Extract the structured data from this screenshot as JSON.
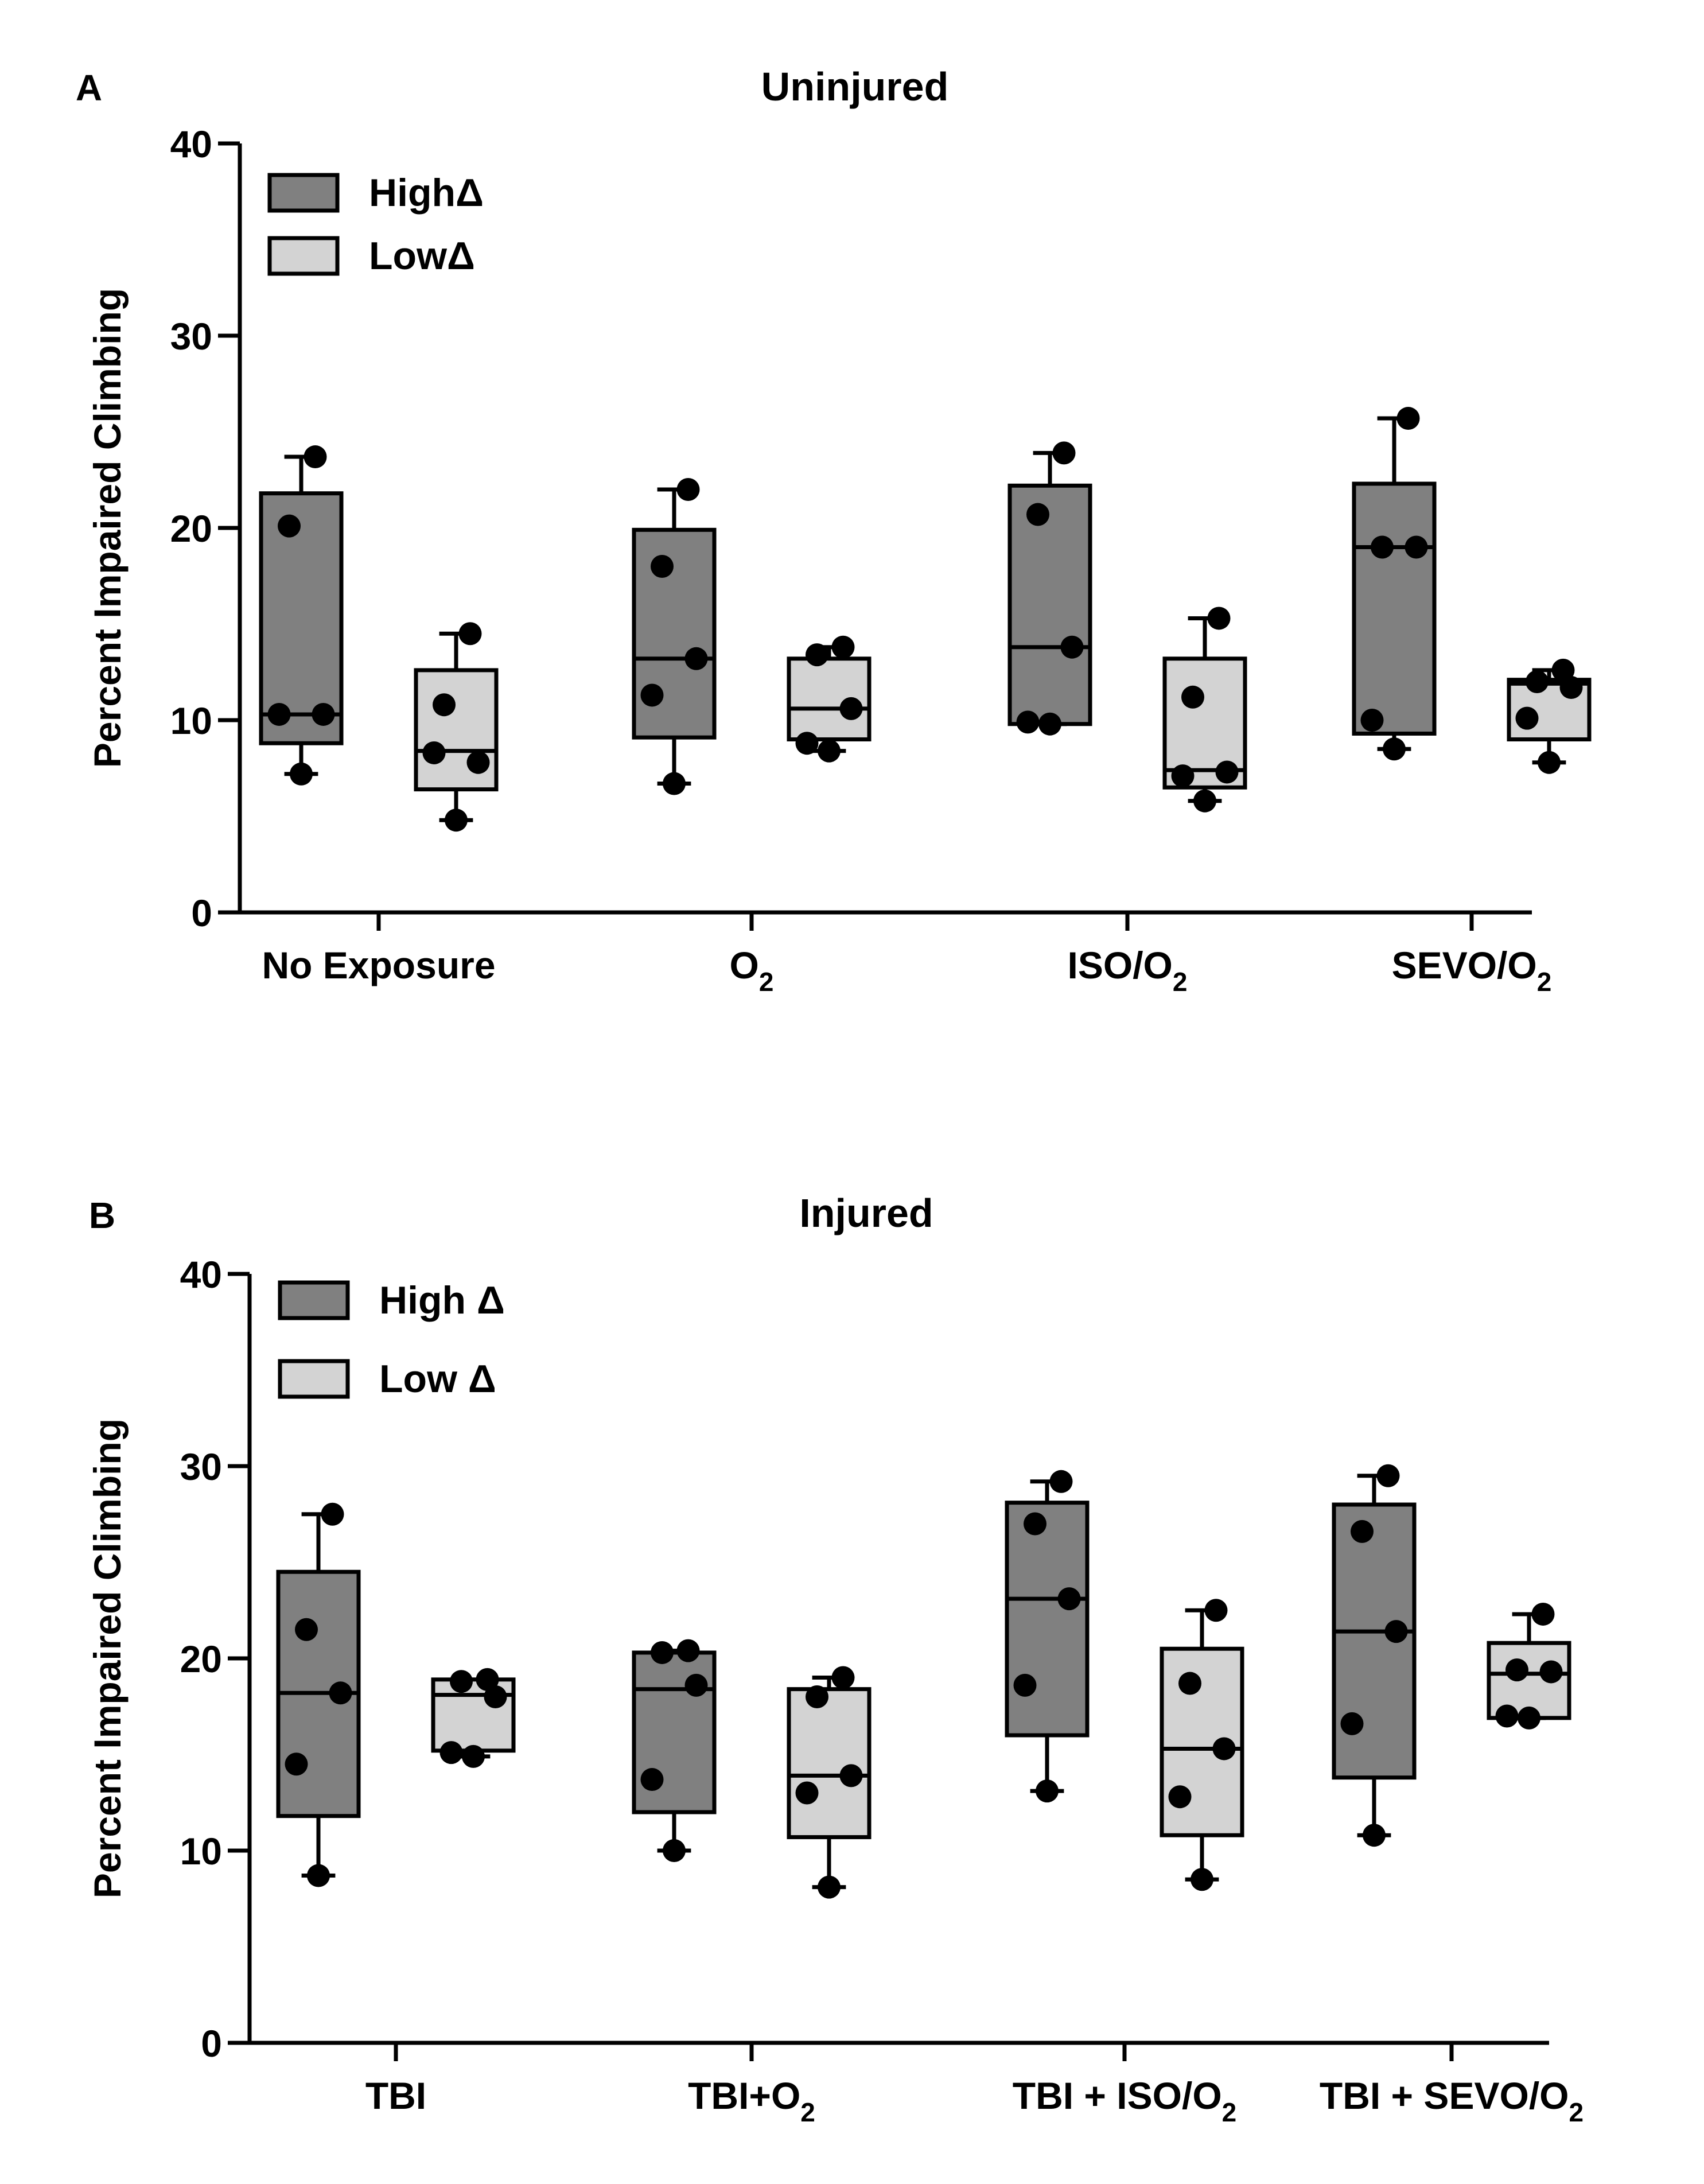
{
  "chart_data": [
    {
      "type": "box",
      "panel_label": "A",
      "title": "Uninjured",
      "ylabel": "Percent Impaired Climbing",
      "xlabel": "",
      "ylim": [
        0,
        40
      ],
      "yticks": [
        "0",
        "10",
        "20",
        "30",
        "40"
      ],
      "legend_position": "top-left",
      "series": [
        {
          "name": "HighΔ",
          "color": "#808080"
        },
        {
          "name": "LowΔ",
          "color": "#d3d3d3"
        }
      ],
      "categories": [
        {
          "label": "No Exposure",
          "sub": ""
        },
        {
          "label": "O",
          "sub": "2"
        },
        {
          "label": "ISO/O",
          "sub": "2"
        },
        {
          "label": "SEVO/O",
          "sub": "2"
        }
      ],
      "boxes": [
        [
          {
            "min": 7.2,
            "q1": 8.8,
            "median": 10.3,
            "q3": 21.8,
            "max": 23.7,
            "points": [
              7.2,
              10.3,
              10.3,
              20.1,
              23.7
            ]
          },
          {
            "min": 4.8,
            "q1": 6.4,
            "median": 8.4,
            "q3": 12.6,
            "max": 14.5,
            "points": [
              4.8,
              8.3,
              7.8,
              10.8,
              14.5
            ]
          }
        ],
        [
          {
            "min": 6.7,
            "q1": 9.1,
            "median": 13.2,
            "q3": 19.9,
            "max": 22.0,
            "points": [
              6.7,
              11.3,
              13.2,
              18.0,
              22.0
            ]
          },
          {
            "min": 8.4,
            "q1": 9.0,
            "median": 10.6,
            "q3": 13.2,
            "max": 13.8,
            "points": [
              8.4,
              8.8,
              10.6,
              13.4,
              13.8
            ]
          }
        ],
        [
          {
            "min": 9.8,
            "q1": 9.8,
            "median": 13.8,
            "q3": 22.2,
            "max": 23.9,
            "points": [
              9.8,
              9.9,
              13.8,
              20.7,
              23.9
            ]
          },
          {
            "min": 5.8,
            "q1": 6.5,
            "median": 7.4,
            "q3": 13.2,
            "max": 15.3,
            "points": [
              5.8,
              7.1,
              7.3,
              11.2,
              15.3
            ]
          }
        ],
        [
          {
            "min": 8.5,
            "q1": 9.3,
            "median": 19.0,
            "q3": 22.3,
            "max": 25.7,
            "points": [
              8.5,
              10.0,
              19.0,
              19.0,
              25.7
            ]
          },
          {
            "min": 7.8,
            "q1": 9.0,
            "median": 11.9,
            "q3": 12.1,
            "max": 12.6,
            "points": [
              7.8,
              10.1,
              11.7,
              12.0,
              12.6
            ]
          }
        ]
      ]
    },
    {
      "type": "box",
      "panel_label": "B",
      "title": "Injured",
      "ylabel": "Percent Impaired Climbing",
      "xlabel": "",
      "ylim": [
        0,
        40
      ],
      "yticks": [
        "0",
        "10",
        "20",
        "30",
        "40"
      ],
      "legend_position": "top-left",
      "series": [
        {
          "name": "High Δ",
          "color": "#808080"
        },
        {
          "name": "Low Δ",
          "color": "#d3d3d3"
        }
      ],
      "categories": [
        {
          "label": "TBI",
          "sub": ""
        },
        {
          "label": "TBI+O",
          "sub": "2"
        },
        {
          "label": "TBI + ISO/O",
          "sub": "2"
        },
        {
          "label": "TBI + SEVO/O",
          "sub": "2"
        }
      ],
      "boxes": [
        [
          {
            "min": 8.7,
            "q1": 11.8,
            "median": 18.2,
            "q3": 24.5,
            "max": 27.5,
            "points": [
              8.7,
              14.5,
              18.2,
              21.5,
              27.5
            ]
          },
          {
            "min": 14.9,
            "q1": 15.2,
            "median": 18.1,
            "q3": 18.9,
            "max": 18.9,
            "points": [
              14.9,
              15.1,
              18.0,
              18.8,
              18.9
            ]
          }
        ],
        [
          {
            "min": 10.0,
            "q1": 12.0,
            "median": 18.4,
            "q3": 20.3,
            "max": 20.4,
            "points": [
              10.0,
              13.7,
              18.6,
              20.3,
              20.4
            ]
          },
          {
            "min": 8.1,
            "q1": 10.7,
            "median": 13.9,
            "q3": 18.4,
            "max": 19.0,
            "points": [
              8.1,
              13.0,
              13.9,
              18.0,
              19.0
            ]
          }
        ],
        [
          {
            "min": 13.1,
            "q1": 16.0,
            "median": 23.1,
            "q3": 28.1,
            "max": 29.2,
            "points": [
              13.1,
              18.6,
              23.1,
              27.0,
              29.2
            ]
          },
          {
            "min": 8.5,
            "q1": 10.8,
            "median": 15.3,
            "q3": 20.5,
            "max": 22.5,
            "points": [
              8.5,
              12.8,
              15.3,
              18.7,
              22.5
            ]
          }
        ],
        [
          {
            "min": 10.8,
            "q1": 13.8,
            "median": 21.4,
            "q3": 28.0,
            "max": 29.5,
            "points": [
              10.8,
              16.6,
              21.4,
              26.6,
              29.5
            ]
          },
          {
            "min": 16.9,
            "q1": 16.9,
            "median": 19.2,
            "q3": 20.8,
            "max": 22.3,
            "points": [
              16.9,
              17.0,
              19.3,
              19.4,
              22.3
            ]
          }
        ]
      ]
    }
  ]
}
